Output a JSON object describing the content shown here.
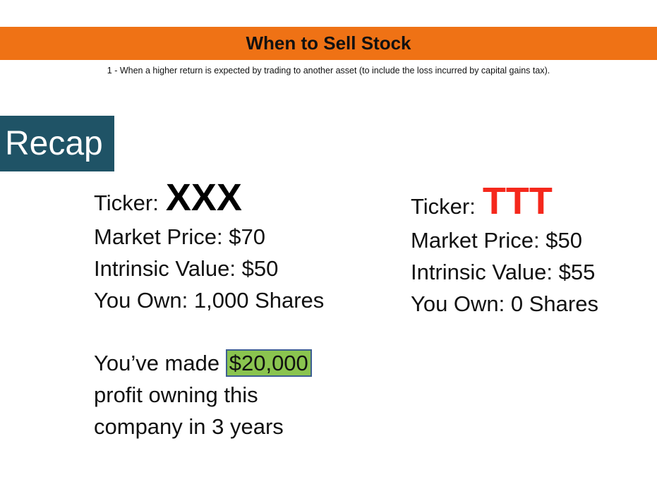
{
  "header": {
    "title": "When to Sell Stock",
    "subtitle": "1 - When a higher return is expected by trading to another asset (to include the loss incurred by capital gains tax)."
  },
  "recap": {
    "label": "Recap"
  },
  "stock_left": {
    "ticker_label": "Ticker:",
    "ticker_symbol": "XXX",
    "market_price": "Market Price: $70",
    "intrinsic_value": "Intrinsic Value: $50",
    "you_own": "You Own: 1,000 Shares"
  },
  "stock_right": {
    "ticker_label": "Ticker:",
    "ticker_symbol": "TTT",
    "market_price": "Market Price: $50",
    "intrinsic_value": "Intrinsic Value: $55",
    "you_own": "You Own: 0 Shares"
  },
  "profit": {
    "prefix": "You’ve made",
    "amount": "$20,000",
    "line2": "profit owning this",
    "line3": "company in 3 years"
  },
  "colors": {
    "title_bar": "#ef7215",
    "recap_box": "#1f5366",
    "ttt_red": "#f5281c",
    "highlight_green": "#8ac44f"
  }
}
